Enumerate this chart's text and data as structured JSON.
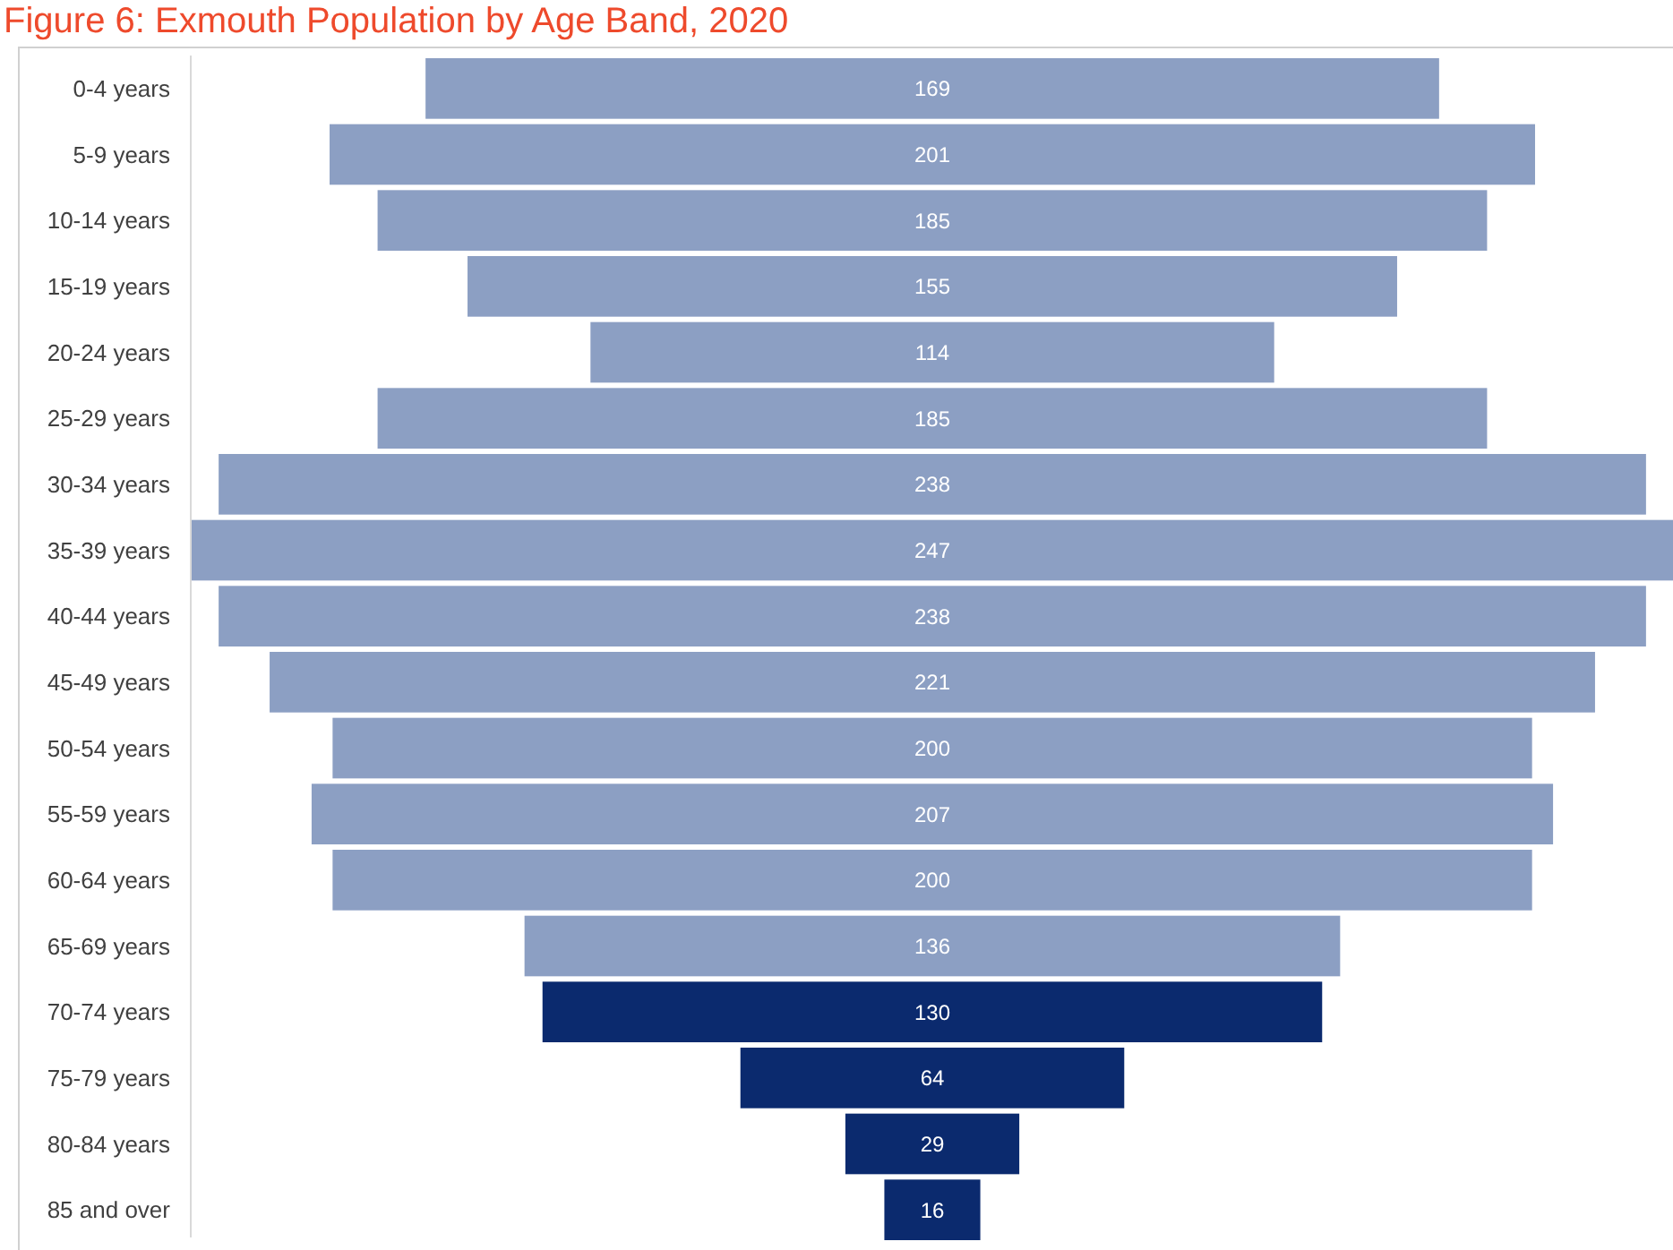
{
  "chart_data": {
    "type": "other",
    "title": "Figure 6: Exmouth Population by Age Band, 2020",
    "categories": [
      "0-4 years",
      "5-9 years",
      "10-14 years",
      "15-19 years",
      "20-24 years",
      "25-29 years",
      "30-34 years",
      "35-39 years",
      "40-44 years",
      "45-49 years",
      "50-54 years",
      "55-59 years",
      "60-64 years",
      "65-69 years",
      "70-74 years",
      "75-79 years",
      "80-84 years",
      "85 and over"
    ],
    "values": [
      169,
      201,
      185,
      155,
      114,
      185,
      238,
      247,
      238,
      221,
      200,
      207,
      200,
      136,
      130,
      64,
      29,
      16
    ],
    "colors": [
      "#8c9fc3",
      "#8c9fc3",
      "#8c9fc3",
      "#8c9fc3",
      "#8c9fc3",
      "#8c9fc3",
      "#8c9fc3",
      "#8c9fc3",
      "#8c9fc3",
      "#8c9fc3",
      "#8c9fc3",
      "#8c9fc3",
      "#8c9fc3",
      "#8c9fc3",
      "#0b2a6e",
      "#0b2a6e",
      "#0b2a6e",
      "#0b2a6e"
    ],
    "data_labels": true
  }
}
